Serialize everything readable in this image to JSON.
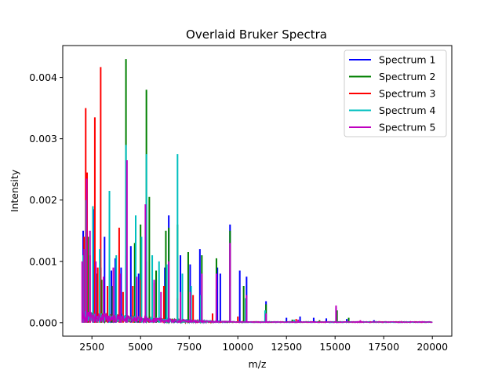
{
  "chart_data": {
    "type": "line",
    "title": "Overlaid Bruker Spectra",
    "xlabel": "m/z",
    "ylabel": "Intensity",
    "xlim": [
      1000,
      21000
    ],
    "ylim": [
      -0.00022,
      0.00452
    ],
    "xticks": [
      2500,
      5000,
      7500,
      10000,
      12500,
      15000,
      17500,
      20000
    ],
    "xtick_labels": [
      "2500",
      "5000",
      "7500",
      "10000",
      "12500",
      "15000",
      "17500",
      "20000"
    ],
    "yticks": [
      0.0,
      0.001,
      0.002,
      0.003,
      0.004
    ],
    "ytick_labels": [
      "0.000",
      "0.001",
      "0.002",
      "0.003",
      "0.004"
    ],
    "grid": false,
    "legend_position": "top-right",
    "x_range": [
      2000,
      20000
    ],
    "series": [
      {
        "name": "Spectrum 1",
        "color": "#0000ff",
        "peaks": [
          [
            2050,
            0.0015
          ],
          [
            2250,
            0.0012
          ],
          [
            2600,
            0.00185
          ],
          [
            2950,
            0.0009
          ],
          [
            3150,
            0.0014
          ],
          [
            3500,
            0.00085
          ],
          [
            3700,
            0.00105
          ],
          [
            4000,
            0.0009
          ],
          [
            4250,
            0.0011
          ],
          [
            4500,
            0.00125
          ],
          [
            4900,
            0.0008
          ],
          [
            5300,
            0.001
          ],
          [
            5800,
            0.0007
          ],
          [
            6250,
            0.0009
          ],
          [
            6450,
            0.00175
          ],
          [
            7050,
            0.0011
          ],
          [
            7550,
            0.00095
          ],
          [
            8050,
            0.0012
          ],
          [
            8950,
            0.0009
          ],
          [
            9100,
            0.0008
          ],
          [
            9600,
            0.0016
          ],
          [
            10100,
            0.00085
          ],
          [
            10450,
            0.00075
          ],
          [
            11450,
            0.00035
          ],
          [
            12500,
            8e-05
          ],
          [
            13200,
            0.0001
          ],
          [
            13900,
            8e-05
          ],
          [
            14550,
            7e-05
          ],
          [
            15050,
            0.00025
          ],
          [
            15600,
            6e-05
          ],
          [
            17000,
            4e-05
          ]
        ]
      },
      {
        "name": "Spectrum 2",
        "color": "#008000",
        "peaks": [
          [
            2100,
            0.0012
          ],
          [
            2300,
            0.0014
          ],
          [
            2750,
            0.0008
          ],
          [
            3000,
            0.0007
          ],
          [
            3550,
            0.0006
          ],
          [
            4250,
            0.0043
          ],
          [
            4700,
            0.0013
          ],
          [
            5000,
            0.0016
          ],
          [
            5300,
            0.0038
          ],
          [
            5450,
            0.00205
          ],
          [
            5800,
            0.00085
          ],
          [
            6300,
            0.0015
          ],
          [
            6450,
            0.00155
          ],
          [
            6900,
            0.0016
          ],
          [
            7450,
            0.00115
          ],
          [
            8150,
            0.0011
          ],
          [
            8900,
            0.00105
          ],
          [
            9600,
            0.0015
          ],
          [
            10300,
            0.0006
          ],
          [
            11450,
            0.0003
          ],
          [
            12800,
            5e-05
          ],
          [
            14200,
            4e-05
          ],
          [
            15100,
            0.0002
          ],
          [
            15700,
            8e-05
          ]
        ]
      },
      {
        "name": "Spectrum 3",
        "color": "#ff0000",
        "peaks": [
          [
            2100,
            0.0014
          ],
          [
            2180,
            0.0035
          ],
          [
            2250,
            0.00245
          ],
          [
            2400,
            0.0011
          ],
          [
            2650,
            0.00335
          ],
          [
            2800,
            0.0009
          ],
          [
            2950,
            0.00417
          ],
          [
            3300,
            0.0006
          ],
          [
            3900,
            0.00155
          ],
          [
            4100,
            0.0005
          ],
          [
            4600,
            0.0006
          ],
          [
            5000,
            0.0007
          ],
          [
            5700,
            0.00065
          ],
          [
            6200,
            0.0006
          ],
          [
            6900,
            0.0004
          ],
          [
            7700,
            0.00045
          ],
          [
            8700,
            0.00015
          ],
          [
            10000,
            0.0001
          ],
          [
            13000,
            6e-05
          ]
        ]
      },
      {
        "name": "Spectrum 4",
        "color": "#00bfbf",
        "peaks": [
          [
            2050,
            0.0011
          ],
          [
            2200,
            0.002
          ],
          [
            2550,
            0.0019
          ],
          [
            2900,
            0.0012
          ],
          [
            3400,
            0.00215
          ],
          [
            3750,
            0.0011
          ],
          [
            4250,
            0.0029
          ],
          [
            4750,
            0.00175
          ],
          [
            5050,
            0.0014
          ],
          [
            5300,
            0.00275
          ],
          [
            5600,
            0.0011
          ],
          [
            5950,
            0.001
          ],
          [
            6350,
            0.00095
          ],
          [
            6900,
            0.00275
          ],
          [
            7150,
            0.0008
          ],
          [
            7600,
            0.0006
          ],
          [
            8100,
            0.00045
          ],
          [
            8900,
            0.00055
          ],
          [
            9600,
            0.0006
          ],
          [
            10400,
            0.0004
          ],
          [
            11400,
            0.0002
          ],
          [
            12900,
            5e-05
          ]
        ]
      },
      {
        "name": "Spectrum 5",
        "color": "#bf00bf",
        "peaks": [
          [
            2000,
            0.001
          ],
          [
            2100,
            0.0012
          ],
          [
            2230,
            0.00235
          ],
          [
            2400,
            0.0015
          ],
          [
            2700,
            0.001
          ],
          [
            3100,
            0.00075
          ],
          [
            3600,
            0.0009
          ],
          [
            3950,
            0.0008
          ],
          [
            4300,
            0.00265
          ],
          [
            4800,
            0.00075
          ],
          [
            5250,
            0.00193
          ],
          [
            5700,
            0.0007
          ],
          [
            6050,
            0.0005
          ],
          [
            6450,
            0.001
          ],
          [
            7050,
            0.0005
          ],
          [
            7550,
            0.0005
          ],
          [
            8150,
            0.0008
          ],
          [
            8900,
            0.0008
          ],
          [
            9600,
            0.0013
          ],
          [
            10450,
            0.00045
          ],
          [
            11450,
            0.00015
          ],
          [
            13100,
            5e-05
          ],
          [
            15050,
            0.00028
          ],
          [
            16300,
            4e-05
          ]
        ]
      }
    ]
  }
}
